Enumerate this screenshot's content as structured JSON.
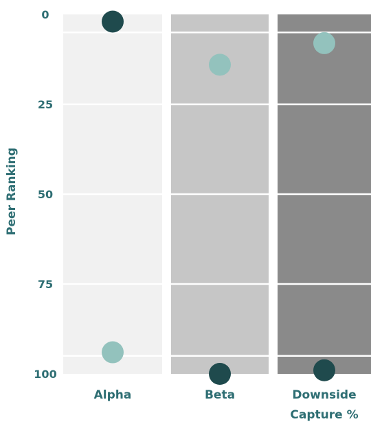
{
  "chart_data": {
    "type": "scatter",
    "ylabel": "Peer Ranking",
    "xlabel": "",
    "ylim": [
      0,
      100
    ],
    "y_inverted": true,
    "y_ticks": [
      0,
      25,
      50,
      75,
      100
    ],
    "grid": true,
    "categories": [
      {
        "label": [
          "Alpha"
        ],
        "band_color": "#f1f1f1"
      },
      {
        "label": [
          "Beta"
        ],
        "band_color": "#c6c6c6"
      },
      {
        "label": [
          "Downside",
          "Capture %"
        ],
        "band_color": "#8a8a8a"
      }
    ],
    "reference_lines": [
      5,
      95
    ],
    "series": [
      {
        "color": "#1f4a4d",
        "values": [
          2,
          100,
          99
        ]
      },
      {
        "color": "#93c2bd",
        "values": [
          94,
          14,
          8
        ]
      }
    ]
  },
  "colors": {
    "axis_text": "#2e6e73",
    "gridline": "#ffffff"
  }
}
